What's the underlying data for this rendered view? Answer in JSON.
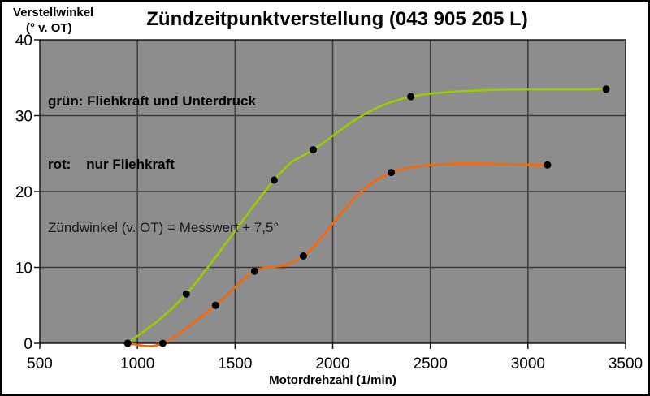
{
  "title": "Zündzeitpunktverstellung (043 905 205 L)",
  "y_axis_title": {
    "line1": "Verstellwinkel",
    "line2": "(° v. OT)"
  },
  "legend": {
    "green": "grün: Fliehkraft und Unterdruck",
    "red": "rot:    nur Fliehkraft",
    "note": "Zündwinkel (v. OT) = Messwert + 7,5°"
  },
  "chart_data": {
    "type": "line",
    "title": "Zündzeitpunktverstellung (043 905 205 L)",
    "xlabel": "Motordrehzahl (1/min)",
    "ylabel": "Verstellwinkel (° v. OT)",
    "xlim": [
      500,
      3500
    ],
    "ylim": [
      0,
      40
    ],
    "x_ticks": [
      500,
      1000,
      1500,
      2000,
      2500,
      3000,
      3500
    ],
    "y_ticks": [
      0,
      10,
      20,
      30,
      40
    ],
    "grid": true,
    "legend_position": "inside top-left",
    "series": [
      {
        "name": "Fliehkraft und Unterdruck",
        "legend_label": "grün: Fliehkraft und Unterdruck",
        "color": "#99CC00",
        "points": [
          [
            950,
            0
          ],
          [
            1250,
            6.5
          ],
          [
            1700,
            21.5
          ],
          [
            1900,
            25.5
          ],
          [
            2400,
            32.5
          ],
          [
            3400,
            33.5
          ]
        ]
      },
      {
        "name": "nur Fliehkraft",
        "legend_label": "rot: nur Fliehkraft",
        "color": "#FF6600",
        "points": [
          [
            950,
            0
          ],
          [
            1130,
            0
          ],
          [
            1400,
            5
          ],
          [
            1600,
            9.5
          ],
          [
            1850,
            11.5
          ],
          [
            2300,
            22.5
          ],
          [
            3100,
            23.5
          ]
        ]
      }
    ],
    "marker": {
      "shape": "circle",
      "color": "#000000",
      "radius": 4.5
    },
    "annotation": "Zündwinkel (v. OT) = Messwert + 7,5°"
  },
  "colors": {
    "page_bg": "#FFFFFF",
    "outer_border": "#000000",
    "plot_bg": "#8D8D8D",
    "grid": "#3C3C3C",
    "axis": "#1A1A1A",
    "green": "#99CC00",
    "orange": "#FF6600",
    "text": "#000000"
  }
}
